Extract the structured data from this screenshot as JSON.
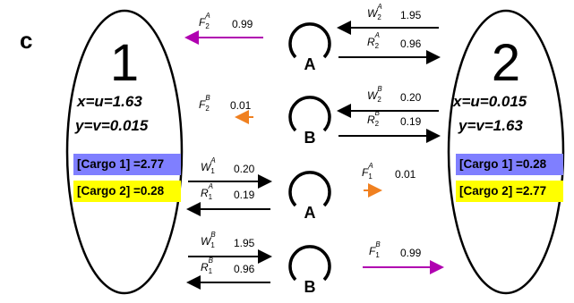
{
  "panel_label": "c",
  "cell1": {
    "number": "1",
    "x_line": "x=u=1.63",
    "y_line": "y=v=0.015",
    "cargo1": "[Cargo 1] =2.77",
    "cargo2": "[Cargo 2] =0.28"
  },
  "cell2": {
    "number": "2",
    "x_line": "x=u=0.015",
    "y_line": "y=v=1.63",
    "cargo1": "[Cargo 1] =0.28",
    "cargo2": "[Cargo 2] =2.77"
  },
  "motors": [
    {
      "label": "A"
    },
    {
      "label": "B"
    },
    {
      "label": "A"
    },
    {
      "label": "B"
    }
  ],
  "rates": {
    "F2A": {
      "sym": "F",
      "sub": "2",
      "sup": "A",
      "value": "0.99",
      "color": "#b000b0"
    },
    "W2A": {
      "sym": "W",
      "sub": "2",
      "sup": "A",
      "value": "1.95"
    },
    "R2A": {
      "sym": "R",
      "sub": "2",
      "sup": "A",
      "value": "0.96"
    },
    "F2B": {
      "sym": "F",
      "sub": "2",
      "sup": "B",
      "value": "0.01",
      "color": "#f08020"
    },
    "W2B": {
      "sym": "W",
      "sub": "2",
      "sup": "B",
      "value": "0.20"
    },
    "R2B": {
      "sym": "R",
      "sub": "2",
      "sup": "B",
      "value": "0.19"
    },
    "W1A": {
      "sym": "W",
      "sub": "1",
      "sup": "A",
      "value": "0.20"
    },
    "R1A": {
      "sym": "R",
      "sub": "1",
      "sup": "A",
      "value": "0.19"
    },
    "F1A": {
      "sym": "F",
      "sub": "1",
      "sup": "A",
      "value": "0.01",
      "color": "#f08020"
    },
    "W1B": {
      "sym": "W",
      "sub": "1",
      "sup": "B",
      "value": "1.95"
    },
    "R1B": {
      "sym": "R",
      "sub": "1",
      "sup": "B",
      "value": "0.96"
    },
    "F1B": {
      "sym": "F",
      "sub": "1",
      "sup": "B",
      "value": "0.99",
      "color": "#b000b0"
    }
  }
}
